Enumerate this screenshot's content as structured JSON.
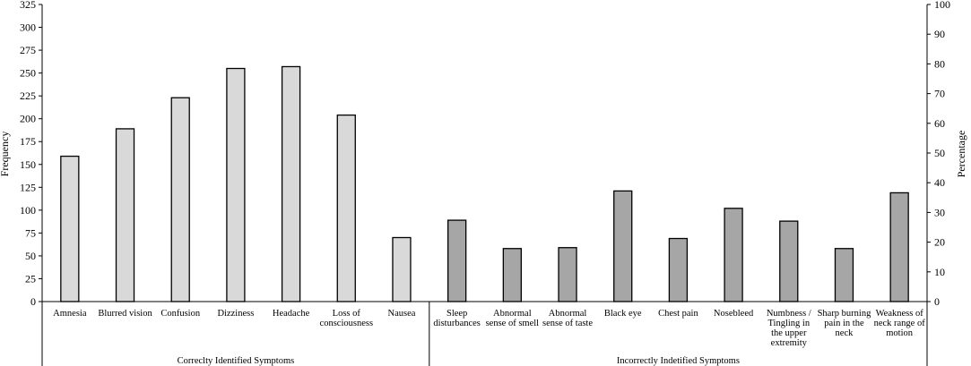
{
  "chart_data": {
    "type": "bar",
    "ylabel": "Frequency",
    "y2label": "Percentage",
    "ylim": [
      0,
      325
    ],
    "yticks": [
      0,
      25,
      50,
      75,
      100,
      125,
      150,
      175,
      200,
      225,
      250,
      275,
      300,
      325
    ],
    "y2lim": [
      0,
      100
    ],
    "y2ticks": [
      0,
      10,
      20,
      30,
      40,
      50,
      60,
      70,
      80,
      90,
      100
    ],
    "grid": false,
    "groups": [
      {
        "name": "Correclty Identified Symptoms",
        "color": "#d9d9d9",
        "categories": [
          [
            "Amnesia"
          ],
          [
            "Blurred vision"
          ],
          [
            "Confusion"
          ],
          [
            "Dizziness"
          ],
          [
            "Headache"
          ],
          [
            "Loss of",
            "consciousness"
          ],
          [
            "Nausea"
          ]
        ],
        "values": [
          159,
          189,
          223,
          255,
          257,
          204,
          70
        ]
      },
      {
        "name": "Incorrectly Indetified Symptoms",
        "color": "#a6a6a6",
        "categories": [
          [
            "Sleep",
            "disturbances"
          ],
          [
            "Abnormal",
            "sense of smell"
          ],
          [
            "Abnormal",
            "sense of taste"
          ],
          [
            "Black eye"
          ],
          [
            "Chest pain"
          ],
          [
            "Nosebleed"
          ],
          [
            "Numbness /",
            "Tingling in",
            "the upper",
            "extremity"
          ],
          [
            "Sharp burning",
            "pain in the",
            "neck"
          ],
          [
            "Weakness of",
            "neck range of",
            "motion"
          ]
        ],
        "values": [
          89,
          58,
          59,
          121,
          69,
          102,
          88,
          58,
          119
        ]
      }
    ]
  }
}
